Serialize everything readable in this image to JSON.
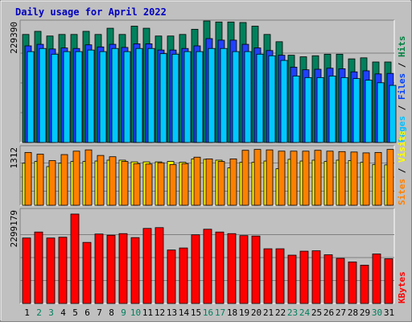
{
  "chart_data": [
    {
      "type": "bar",
      "title": "Daily usage for April 2022",
      "ylabel_parts": [
        "Pages",
        "Files",
        "Hits"
      ],
      "ylabel_colors": [
        "#00c0ff",
        "#0040ff",
        "#008040"
      ],
      "ymax_label": "229390",
      "ylim": [
        0,
        229390
      ],
      "categories": [
        "1",
        "2",
        "3",
        "4",
        "5",
        "6",
        "7",
        "8",
        "9",
        "10",
        "11",
        "12",
        "13",
        "14",
        "15",
        "16",
        "17",
        "18",
        "19",
        "20",
        "21",
        "22",
        "23",
        "24",
        "25",
        "26",
        "27",
        "28",
        "29",
        "30",
        "31"
      ],
      "series": [
        {
          "name": "Hits",
          "color": "#00805c",
          "values": [
            208000,
            214000,
            205000,
            208000,
            208000,
            214000,
            208000,
            220000,
            208000,
            224000,
            220000,
            205000,
            205000,
            208000,
            218000,
            234000,
            232000,
            232000,
            231000,
            224000,
            208000,
            194000,
            168000,
            165000,
            167000,
            170000,
            170000,
            161000,
            163000,
            155000,
            155000
          ]
        },
        {
          "name": "Files",
          "color": "#2040ff",
          "values": [
            186000,
            189000,
            180000,
            182000,
            181000,
            188000,
            184000,
            189000,
            183000,
            190000,
            190000,
            178000,
            178000,
            181000,
            186000,
            200000,
            197000,
            197000,
            189000,
            182000,
            177000,
            168000,
            145000,
            140000,
            141000,
            143000,
            142000,
            136000,
            138000,
            132000,
            133000
          ]
        },
        {
          "name": "Pages",
          "color": "#00c8ff",
          "values": [
            175000,
            181000,
            170000,
            175000,
            175000,
            178000,
            175000,
            181000,
            175000,
            181000,
            181000,
            171000,
            170000,
            175000,
            175000,
            181000,
            181000,
            175000,
            175000,
            170000,
            167000,
            158000,
            128000,
            125000,
            125000,
            128000,
            125000,
            123000,
            120000,
            115000,
            110000
          ]
        }
      ]
    },
    {
      "type": "bar",
      "ylabel_parts": [
        "Sites",
        "Visits"
      ],
      "ylabel_colors": [
        "#ff8000",
        "#ffff00"
      ],
      "ymax_label": "1312",
      "ylim": [
        0,
        1312
      ],
      "categories": [
        "1",
        "2",
        "3",
        "4",
        "5",
        "6",
        "7",
        "8",
        "9",
        "10",
        "11",
        "12",
        "13",
        "14",
        "15",
        "16",
        "17",
        "18",
        "19",
        "20",
        "21",
        "22",
        "23",
        "24",
        "25",
        "26",
        "27",
        "28",
        "29",
        "30",
        "31"
      ],
      "series": [
        {
          "name": "Visits",
          "color": "#ffff00",
          "values": [
            980,
            1020,
            900,
            980,
            1020,
            1020,
            1030,
            1050,
            1050,
            1010,
            1010,
            1010,
            1020,
            1000,
            1080,
            1070,
            1050,
            870,
            1000,
            1000,
            1030,
            850,
            1070,
            1030,
            1050,
            1020,
            1050,
            1040,
            1000,
            950,
            940
          ]
        },
        {
          "name": "Sites",
          "color": "#ff8000",
          "values": [
            1230,
            1190,
            1040,
            1180,
            1260,
            1290,
            1160,
            1130,
            1020,
            970,
            960,
            990,
            950,
            970,
            1120,
            1080,
            1020,
            1080,
            1280,
            1300,
            1290,
            1260,
            1260,
            1260,
            1280,
            1260,
            1250,
            1240,
            1220,
            1230,
            1300
          ]
        }
      ]
    },
    {
      "type": "bar",
      "ylabel_parts": [
        "KBytes"
      ],
      "ylabel_colors": [
        "#ff0000"
      ],
      "ymax_label": "2299179",
      "ylim": [
        0,
        2299179
      ],
      "categories": [
        "1",
        "2",
        "3",
        "4",
        "5",
        "6",
        "7",
        "8",
        "9",
        "10",
        "11",
        "12",
        "13",
        "14",
        "15",
        "16",
        "17",
        "18",
        "19",
        "20",
        "21",
        "22",
        "23",
        "24",
        "25",
        "26",
        "27",
        "28",
        "29",
        "30",
        "31"
      ],
      "series": [
        {
          "name": "KBytes",
          "color": "#ff0000",
          "values": [
            1640000,
            1790000,
            1640000,
            1660000,
            2240000,
            1530000,
            1740000,
            1710000,
            1750000,
            1650000,
            1880000,
            1900000,
            1340000,
            1390000,
            1720000,
            1860000,
            1790000,
            1750000,
            1700000,
            1690000,
            1370000,
            1370000,
            1210000,
            1310000,
            1320000,
            1220000,
            1130000,
            1040000,
            960000,
            1240000,
            1120000
          ]
        }
      ]
    }
  ],
  "x_label_colors": {
    "weekday": "#000000",
    "weekend": "#00805c"
  },
  "weekend_days": [
    2,
    3,
    9,
    10,
    16,
    17,
    23,
    24,
    30
  ]
}
